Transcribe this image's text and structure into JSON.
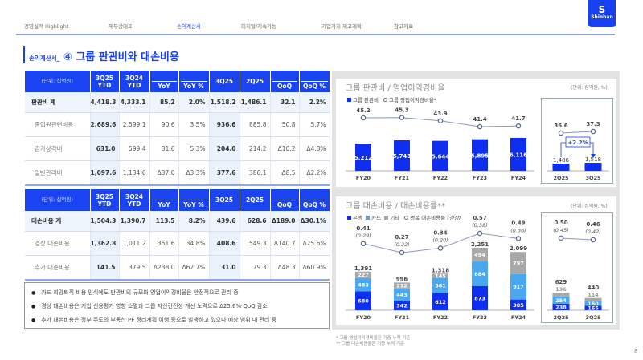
{
  "nav": {
    "items": [
      "경영실적 Highlight",
      "재무상태표",
      "손익계산서",
      "디지털/지속가능",
      "기업가치 제고계획",
      "참고자료"
    ],
    "active": 2
  },
  "logo": {
    "text": "Shinhan"
  },
  "title": {
    "prefix": "손익계산서_",
    "main": "④ 그룹 판관비와 대손비용"
  },
  "table_headers": {
    "unit": "(단위: 십억원)",
    "cols": [
      "3Q25 YTD",
      "3Q24 YTD",
      "YoY",
      "YoY %",
      "3Q25",
      "2Q25",
      "QoQ",
      "QoQ %"
    ]
  },
  "sga_table": [
    [
      "판관비 계",
      "4,418.3",
      "4,333.1",
      "85.2",
      "2.0%",
      "1,518.2",
      "1,486.1",
      "32.1",
      "2.2%"
    ],
    [
      "종업원관련비용",
      "2,689.6",
      "2,599.1",
      "90.6",
      "3.5%",
      "936.6",
      "885.8",
      "50.8",
      "5.7%"
    ],
    [
      "감가상각비",
      "631.0",
      "599.4",
      "31.6",
      "5.3%",
      "204.0",
      "214.2",
      "Δ10.2",
      "Δ4.8%"
    ],
    [
      "일반관리비",
      "1,097.6",
      "1,134.6",
      "Δ37.0",
      "Δ3.3%",
      "377.6",
      "386.1",
      "Δ8.5",
      "Δ2.2%"
    ]
  ],
  "credit_table": [
    [
      "대손비용 계",
      "1,504.3",
      "1,390.7",
      "113.5",
      "8.2%",
      "439.6",
      "628.6",
      "Δ189.0",
      "Δ30.1%"
    ],
    [
      "경상 대손비용",
      "1,362.8",
      "1,011.2",
      "351.6",
      "34.8%",
      "408.6",
      "549.3",
      "Δ140.7",
      "Δ25.6%"
    ],
    [
      "추가 대손비용",
      "141.5",
      "379.5",
      "Δ238.0",
      "Δ62.7%",
      "31.0",
      "79.3",
      "Δ48.3",
      "Δ60.9%"
    ]
  ],
  "bullets": [
    "카드 희망퇴직 비용 인식에도 판관비의 규모와 영업이익경비율은 안정적으로 관리 중",
    "경상 대손비용은 기업 신용평가 영향 소멸과 그룹 자산건전성 개선 노력으로 Δ25.6% QoQ 감소",
    "추가 대손비용은 정부 주도의 부동산 PF 정리계획 이행 등으로 발생하고 있으나 예상 범위 내 관리 중"
  ],
  "chart1": {
    "title": "그룹 판관비 / 영업이익경비율",
    "unit": "(단위: 십억원, %)",
    "legend": [
      "그룹 판관비",
      "그룹 영업이익경비율*"
    ],
    "growth_label": "+2.2%"
  },
  "chart2": {
    "title": "그룹 대손비용 / 대손비용률**",
    "unit": "(단위: 십억원, %)",
    "legend": [
      "은행",
      "카드",
      "기타",
      "명목 대손비용률",
      "(경상)"
    ]
  },
  "colors": {
    "brand": "#1740f0",
    "bank": "#0f2ff0",
    "card": "#4aa8f0",
    "other": "#a8a8a8",
    "line": "#8a98b8"
  },
  "chart_data": [
    {
      "type": "bar",
      "title": "그룹 판관비 / 영업이익경비율",
      "categories": [
        "FY20",
        "FY21",
        "FY22",
        "FY23",
        "FY24",
        "2Q25",
        "3Q25"
      ],
      "series": [
        {
          "name": "그룹 판관비",
          "values": [
            5212,
            5743,
            5644,
            5895,
            6116,
            1486,
            1518
          ]
        },
        {
          "name": "그룹 영업이익경비율*",
          "type": "line",
          "values": [
            45.2,
            45.3,
            43.9,
            41.4,
            41.7,
            36.6,
            37.3
          ]
        }
      ]
    },
    {
      "type": "bar",
      "stacked": true,
      "title": "그룹 대손비용 / 대손비용률**",
      "categories": [
        "FY20",
        "FY21",
        "FY22",
        "FY23",
        "FY24",
        "2Q25",
        "3Q25"
      ],
      "totals": [
        "1,391",
        "996",
        "1,318",
        "2,251",
        "2,099",
        "629",
        "440"
      ],
      "series": [
        {
          "name": "은행",
          "values": [
            680,
            342,
            612,
            873,
            385,
            238,
            165
          ]
        },
        {
          "name": "카드",
          "values": [
            483,
            443,
            561,
            884,
            917,
            254,
            160
          ]
        },
        {
          "name": "기타",
          "values": [
            227,
            212,
            145,
            494,
            797,
            136,
            114
          ]
        },
        {
          "name": "명목 대손비용률",
          "type": "line",
          "values": [
            0.41,
            0.27,
            0.34,
            0.57,
            0.49,
            0.5,
            0.46
          ]
        },
        {
          "name": "(경상)",
          "values": [
            "(0.29)",
            "(0.22)",
            "(0.20)",
            "(0.38)",
            "(0.36)",
            "(0.45)",
            "(0.42)"
          ]
        }
      ]
    }
  ],
  "footnotes": [
    "* 그룹 영업이익경비율은 기중 누적 기준",
    "** 그룹 대손비용률은 기중 누적 기준"
  ],
  "page_number": "8"
}
